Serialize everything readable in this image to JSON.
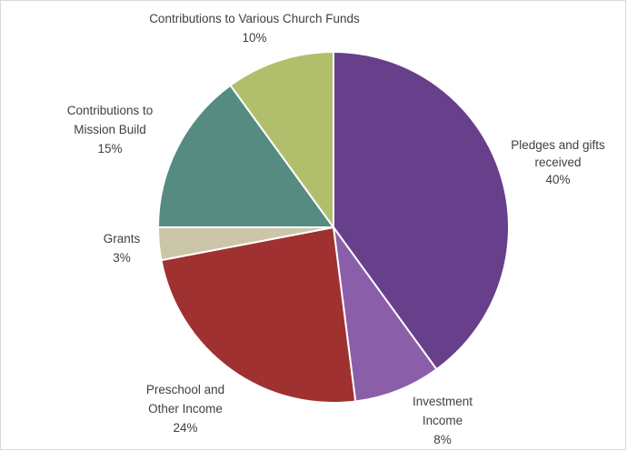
{
  "chart_data": {
    "type": "pie",
    "slices": [
      {
        "label": "Pledges and gifts received",
        "value": 40,
        "percent_label": "40%",
        "color": "#673f8a"
      },
      {
        "label": "Investment Income",
        "value": 8,
        "percent_label": "8%",
        "color": "#8b5ea9"
      },
      {
        "label": "Preschool and Other Income",
        "value": 24,
        "percent_label": "24%",
        "color": "#a03131"
      },
      {
        "label": "Grants",
        "value": 3,
        "percent_label": "3%",
        "color": "#ccc6a9"
      },
      {
        "label": "Contributions to Mission Build",
        "value": 15,
        "percent_label": "15%",
        "color": "#568b82"
      },
      {
        "label": "Contributions to Various Church Funds",
        "value": 10,
        "percent_label": "10%",
        "color": "#b1bf6c"
      }
    ],
    "data_labels": [
      {
        "lines": [
          "Pledges and gifts",
          "received"
        ],
        "percent": "40%"
      },
      {
        "lines": [
          "Investment",
          "Income"
        ],
        "percent": "8%"
      },
      {
        "lines": [
          "Preschool and",
          "Other Income"
        ],
        "percent": "24%"
      },
      {
        "lines": [
          "Grants"
        ],
        "percent": "3%"
      },
      {
        "lines": [
          "Contributions to",
          "Mission Build"
        ],
        "percent": "15%"
      },
      {
        "lines": [
          "Contributions to Various Church Funds"
        ],
        "percent": "10%"
      }
    ],
    "legend": "none"
  }
}
